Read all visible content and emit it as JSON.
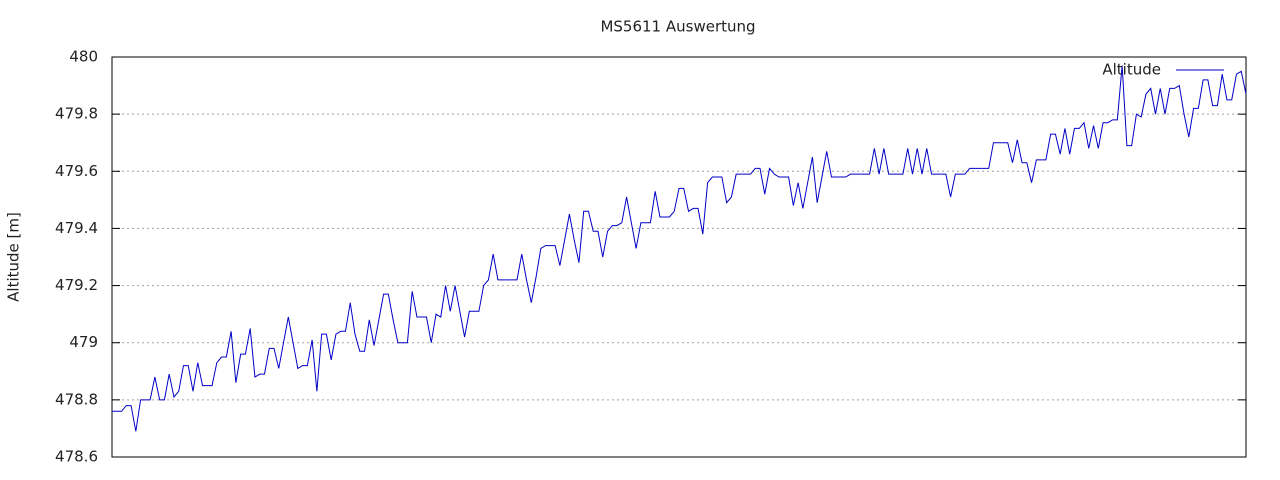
{
  "chart_data": {
    "type": "line",
    "title": "MS5611 Auswertung",
    "y_label": "Altitude [m]",
    "ylim": [
      478.6,
      480
    ],
    "yticks": [
      478.6,
      478.8,
      479,
      479.2,
      479.4,
      479.6,
      479.8,
      480
    ],
    "grid": true,
    "legend": "top-right",
    "series": [
      {
        "name": "Altitude",
        "color": "#0000c8",
        "values": [
          478.76,
          478.76,
          478.76,
          478.78,
          478.78,
          478.69,
          478.8,
          478.8,
          478.8,
          478.88,
          478.8,
          478.8,
          478.89,
          478.81,
          478.83,
          478.92,
          478.92,
          478.83,
          478.93,
          478.85,
          478.85,
          478.85,
          478.93,
          478.95,
          478.95,
          479.04,
          478.86,
          478.96,
          478.96,
          479.05,
          478.88,
          478.89,
          478.89,
          478.98,
          478.98,
          478.91,
          479.0,
          479.09,
          479.0,
          478.91,
          478.92,
          478.92,
          479.01,
          478.83,
          479.03,
          479.03,
          478.94,
          479.03,
          479.04,
          479.04,
          479.14,
          479.03,
          478.97,
          478.97,
          479.08,
          478.99,
          479.08,
          479.17,
          479.17,
          479.08,
          479.0,
          479.0,
          479.0,
          479.18,
          479.09,
          479.09,
          479.09,
          479.0,
          479.1,
          479.09,
          479.2,
          479.11,
          479.2,
          479.11,
          479.02,
          479.11,
          479.11,
          479.11,
          479.2,
          479.22,
          479.31,
          479.22,
          479.22,
          479.22,
          479.22,
          479.22,
          479.31,
          479.22,
          479.14,
          479.23,
          479.33,
          479.34,
          479.34,
          479.34,
          479.27,
          479.36,
          479.45,
          479.36,
          479.28,
          479.46,
          479.46,
          479.39,
          479.39,
          479.3,
          479.39,
          479.41,
          479.41,
          479.42,
          479.51,
          479.42,
          479.33,
          479.42,
          479.42,
          479.42,
          479.53,
          479.44,
          479.44,
          479.44,
          479.46,
          479.54,
          479.54,
          479.46,
          479.47,
          479.47,
          479.38,
          479.56,
          479.58,
          479.58,
          479.58,
          479.49,
          479.51,
          479.59,
          479.59,
          479.59,
          479.59,
          479.61,
          479.61,
          479.52,
          479.61,
          479.59,
          479.58,
          479.58,
          479.58,
          479.48,
          479.56,
          479.47,
          479.56,
          479.65,
          479.49,
          479.58,
          479.67,
          479.58,
          479.58,
          479.58,
          479.58,
          479.59,
          479.59,
          479.59,
          479.59,
          479.59,
          479.68,
          479.59,
          479.68,
          479.59,
          479.59,
          479.59,
          479.59,
          479.68,
          479.59,
          479.68,
          479.59,
          479.68,
          479.59,
          479.59,
          479.59,
          479.59,
          479.51,
          479.59,
          479.59,
          479.59,
          479.61,
          479.61,
          479.61,
          479.61,
          479.61,
          479.7,
          479.7,
          479.7,
          479.7,
          479.63,
          479.71,
          479.63,
          479.63,
          479.56,
          479.64,
          479.64,
          479.64,
          479.73,
          479.73,
          479.66,
          479.75,
          479.66,
          479.75,
          479.75,
          479.77,
          479.68,
          479.76,
          479.68,
          479.77,
          479.77,
          479.78,
          479.78,
          479.97,
          479.69,
          479.69,
          479.8,
          479.79,
          479.87,
          479.89,
          479.8,
          479.89,
          479.8,
          479.89,
          479.89,
          479.9,
          479.8,
          479.72,
          479.82,
          479.82,
          479.92,
          479.92,
          479.83,
          479.83,
          479.94,
          479.85,
          479.85,
          479.94,
          479.95,
          479.87
        ]
      }
    ]
  }
}
